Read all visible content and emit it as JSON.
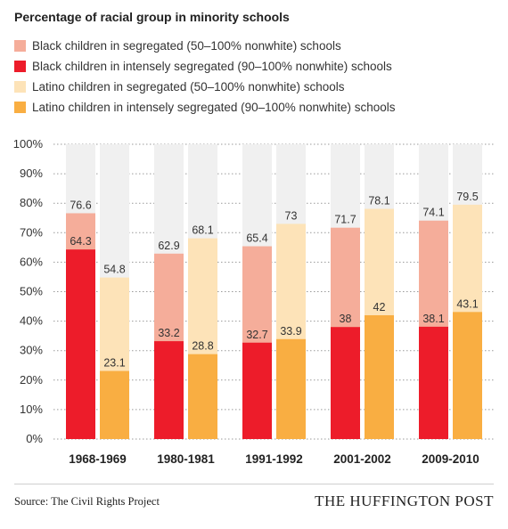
{
  "title": "Percentage of racial group in minority schools",
  "legend": [
    {
      "label": "Black children in segregated (50–100% nonwhite) schools",
      "color": "#f5ad9a"
    },
    {
      "label": "Black children in intensely segregated (90–100% nonwhite) schools",
      "color": "#ed1c2a"
    },
    {
      "label": "Latino children in segregated (50–100% nonwhite) schools",
      "color": "#fde3b8"
    },
    {
      "label": "Latino children in intensely segregated (90–100% nonwhite) schools",
      "color": "#f9ae42"
    }
  ],
  "colors": {
    "background_bar": "#f0f0f0",
    "gridline": "#9a9a9a",
    "black_segregated": "#f5ad9a",
    "black_intense": "#ed1c2a",
    "latino_segregated": "#fde3b8",
    "latino_intense": "#f9ae42"
  },
  "chart_data": {
    "type": "bar",
    "categories": [
      "1968-1969",
      "1980-1981",
      "1991-1992",
      "2001-2002",
      "2009-2010"
    ],
    "ylim": [
      0,
      100
    ],
    "yticks": [
      "0%",
      "10%",
      "20%",
      "30%",
      "40%",
      "50%",
      "60%",
      "70%",
      "80%",
      "90%",
      "100%"
    ],
    "grid": true,
    "series": [
      {
        "name": "Black children in segregated (50–100% nonwhite) schools",
        "values": [
          76.6,
          62.9,
          65.4,
          71.7,
          74.1
        ],
        "labels": [
          "76.6",
          "62.9",
          "65.4",
          "71.7",
          "74.1"
        ]
      },
      {
        "name": "Black children in intensely segregated (90–100% nonwhite) schools",
        "values": [
          64.3,
          33.2,
          32.7,
          38,
          38.1
        ],
        "labels": [
          "64.3",
          "33.2",
          "32.7",
          "38",
          "38.1"
        ]
      },
      {
        "name": "Latino children in segregated (50–100% nonwhite) schools",
        "values": [
          54.8,
          68.1,
          73,
          78.1,
          79.5
        ],
        "labels": [
          "54.8",
          "68.1",
          "73",
          "78.1",
          "79.5"
        ]
      },
      {
        "name": "Latino children in intensely segregated (90–100% nonwhite) schools",
        "values": [
          23.1,
          28.8,
          33.9,
          42,
          43.1
        ],
        "labels": [
          "23.1",
          "28.8",
          "33.9",
          "42",
          "43.1"
        ]
      }
    ]
  },
  "footer": {
    "source": "Source: The Civil Rights Project",
    "brand": "THE HUFFINGTON POST"
  }
}
